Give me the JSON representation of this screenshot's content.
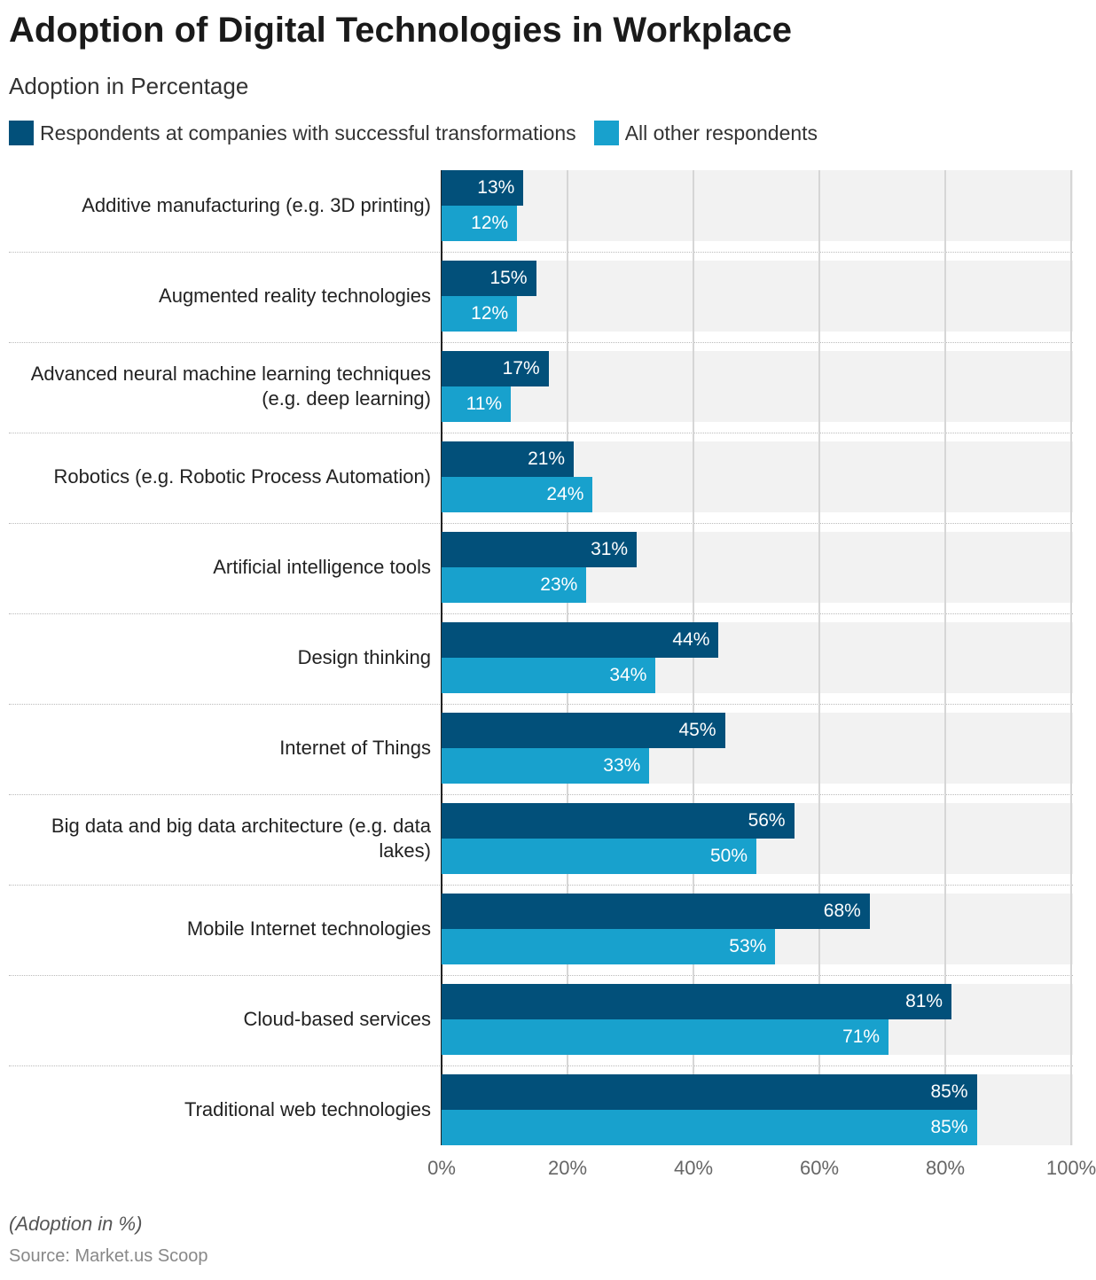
{
  "title": "Adoption of Digital Technologies in Workplace",
  "subtitle": "Adoption in Percentage",
  "note": "(Adoption in %)",
  "source": "Source: Market.us Scoop",
  "chart_data": {
    "type": "bar",
    "orientation": "horizontal",
    "title": "Adoption of Digital Technologies in Workplace",
    "subtitle": "Adoption in Percentage",
    "categories": [
      "Additive manufacturing (e.g. 3D printing)",
      "Augmented reality technologies",
      "Advanced neural machine learning techniques (e.g. deep learning)",
      "Robotics (e.g. Robotic Process Automation)",
      "Artificial intelligence tools",
      "Design thinking",
      "Internet of Things",
      "Big data and big data architecture (e.g. data lakes)",
      "Mobile Internet technologies",
      "Cloud-based services",
      "Traditional web technologies"
    ],
    "series": [
      {
        "name": "Respondents at companies with successful transformations",
        "color": "#02507a",
        "values": [
          13,
          15,
          17,
          21,
          31,
          44,
          45,
          56,
          68,
          81,
          85
        ]
      },
      {
        "name": "All other respondents",
        "color": "#18a1cd",
        "values": [
          12,
          12,
          11,
          24,
          23,
          34,
          33,
          50,
          53,
          71,
          85
        ]
      }
    ],
    "xlim": [
      0,
      100
    ],
    "xticks": [
      "0%",
      "20%",
      "40%",
      "60%",
      "80%",
      "100%"
    ],
    "tick_values": [
      0,
      20,
      40,
      60,
      80,
      100
    ],
    "grid": true,
    "legend": "top-left",
    "value_suffix": "%"
  }
}
